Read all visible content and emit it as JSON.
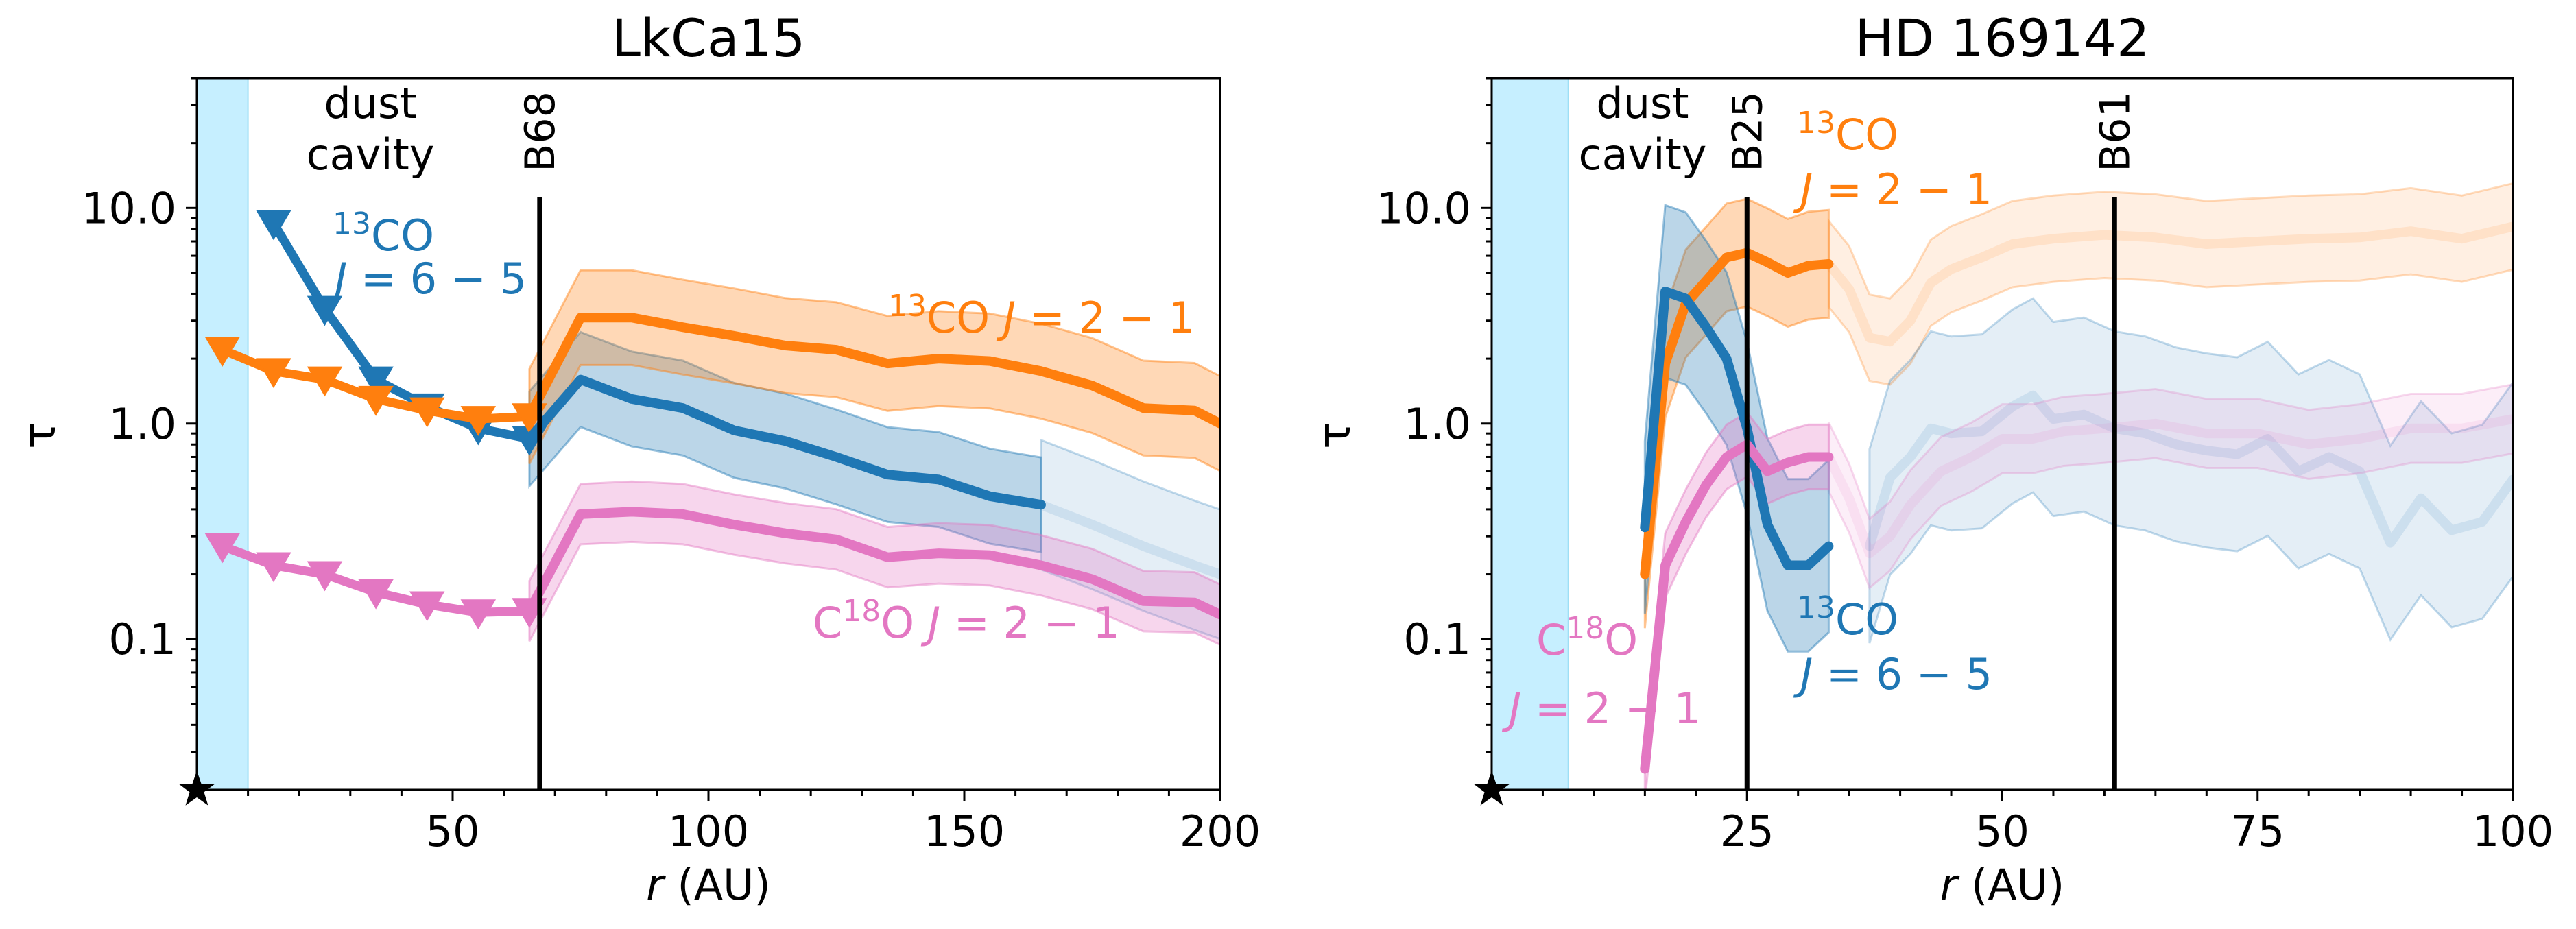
{
  "chart_data": [
    {
      "type": "line",
      "title": "LkCa15",
      "xlabel_italic": "r",
      "xlabel_rest": " (AU)",
      "ylabel": "τ",
      "xlim": [
        0,
        200
      ],
      "ylim": [
        0.02,
        40
      ],
      "yscale": "log",
      "xticks": [
        50,
        100,
        150,
        200
      ],
      "xtick_labels": [
        "50",
        "100",
        "150",
        "200"
      ],
      "yticks": [
        0.1,
        1.0,
        10.0
      ],
      "ytick_labels": [
        "0.1",
        "1.0",
        "10.0"
      ],
      "cavity": {
        "x0": 0,
        "x1": 10,
        "label_line1": "dust",
        "label_line2": "cavity",
        "color": "#c6efff"
      },
      "vlines": [
        {
          "x": 67,
          "label": "B68"
        }
      ],
      "series": [
        {
          "name": "13CO J=6-5",
          "color": "#1f77b4",
          "upper_limits": {
            "x": [
              15,
              25,
              35,
              45,
              55,
              65
            ],
            "y": [
              8.5,
              3.4,
              1.6,
              1.2,
              0.95,
              0.85
            ]
          },
          "main": {
            "x": [
              65,
              75,
              85,
              95,
              105,
              115,
              125,
              135,
              145,
              155,
              165
            ],
            "y": [
              0.85,
              1.6,
              1.3,
              1.18,
              0.93,
              0.83,
              0.7,
              0.58,
              0.55,
              0.46,
              0.42
            ],
            "err": 0.22
          },
          "faded": {
            "x": [
              165,
              175,
              185,
              195,
              200
            ],
            "y": [
              0.42,
              0.34,
              0.27,
              0.22,
              0.2
            ],
            "err": 0.3
          }
        },
        {
          "name": "13CO J=2-1",
          "color": "#ff7f0e",
          "upper_limits": {
            "x": [
              5,
              15,
              25,
              35,
              45,
              55,
              65
            ],
            "y": [
              2.2,
              1.75,
              1.6,
              1.3,
              1.15,
              1.05,
              1.08
            ]
          },
          "main": {
            "x": [
              65,
              75,
              85,
              95,
              105,
              115,
              125,
              135,
              145,
              155,
              165,
              175,
              185,
              195,
              200
            ],
            "y": [
              1.08,
              3.1,
              3.1,
              2.8,
              2.55,
              2.3,
              2.2,
              1.9,
              2.0,
              1.95,
              1.75,
              1.5,
              1.18,
              1.15,
              1.0
            ],
            "err": 0.22
          }
        },
        {
          "name": "C18O J=2-1",
          "color": "#e377c2",
          "upper_limits": {
            "x": [
              5,
              15,
              25,
              35,
              45,
              55,
              65
            ],
            "y": [
              0.27,
              0.22,
              0.2,
              0.165,
              0.145,
              0.133,
              0.135
            ]
          },
          "main": {
            "x": [
              65,
              75,
              85,
              95,
              105,
              115,
              125,
              135,
              145,
              155,
              165,
              175,
              185,
              195,
              200
            ],
            "y": [
              0.135,
              0.38,
              0.39,
              0.38,
              0.34,
              0.31,
              0.29,
              0.24,
              0.25,
              0.245,
              0.22,
              0.19,
              0.15,
              0.148,
              0.13
            ],
            "err": 0.14
          }
        }
      ],
      "annotations": [
        {
          "id": "co13_65",
          "sup": "13",
          "line1": "CO",
          "line2_italic": "J",
          "line2_rest": " = 6 − 5",
          "color": "#1f77b4"
        },
        {
          "id": "co13_21",
          "sup": "13",
          "line1": "CO",
          "line2_italic": "J",
          "line2_rest": " = 2 − 1",
          "color": "#ff7f0e"
        },
        {
          "id": "c18o_21",
          "pre": "C",
          "sup": "18",
          "line1": "O",
          "line2_italic": "J",
          "line2_rest": " = 2 − 1",
          "color": "#e377c2"
        }
      ]
    },
    {
      "type": "line",
      "title": "HD 169142",
      "xlabel_italic": "r",
      "xlabel_rest": " (AU)",
      "ylabel": "τ",
      "xlim": [
        0,
        100
      ],
      "ylim": [
        0.02,
        40
      ],
      "yscale": "log",
      "xticks": [
        25,
        50,
        75,
        100
      ],
      "xtick_labels": [
        "25",
        "50",
        "75",
        "100"
      ],
      "yticks": [
        0.1,
        1.0,
        10.0
      ],
      "ytick_labels": [
        "0.1",
        "1.0",
        "10.0"
      ],
      "cavity": {
        "x0": 0,
        "x1": 7.5,
        "label_line1": "dust",
        "label_line2": "cavity",
        "color": "#c6efff"
      },
      "vlines": [
        {
          "x": 25,
          "label": "B25"
        },
        {
          "x": 61,
          "label": "B61"
        }
      ],
      "series": [
        {
          "name": "13CO J=2-1",
          "color": "#ff7f0e",
          "main": {
            "x": [
              15,
              17,
              19,
              21,
              23,
              25,
              27,
              29,
              31,
              33
            ],
            "y": [
              0.2,
              1.9,
              3.6,
              4.6,
              5.9,
              6.2,
              5.6,
              5.0,
              5.4,
              5.5
            ],
            "err": 0.25
          },
          "faded": {
            "x": [
              33,
              35,
              37,
              39,
              41,
              43,
              45,
              48,
              51,
              55,
              60,
              65,
              70,
              75,
              80,
              85,
              90,
              95,
              100
            ],
            "y": [
              5.5,
              4.2,
              2.5,
              2.4,
              3.0,
              4.5,
              5.2,
              5.9,
              6.8,
              7.2,
              7.5,
              7.3,
              6.8,
              7.0,
              7.2,
              7.3,
              7.8,
              7.2,
              8.2
            ],
            "err": 0.2
          }
        },
        {
          "name": "13CO J=6-5",
          "color": "#1f77b4",
          "main": {
            "x": [
              15,
              17,
              19,
              21,
              23,
              25,
              27,
              29,
              31,
              33
            ],
            "y": [
              0.33,
              4.1,
              3.8,
              2.8,
              2.0,
              0.95,
              0.34,
              0.22,
              0.22,
              0.27
            ],
            "err": 0.4
          },
          "faded": {
            "x": [
              37,
              39,
              41,
              43,
              45,
              48,
              51,
              53,
              55,
              58,
              61,
              64,
              67,
              70,
              73,
              76,
              79,
              82,
              85,
              88,
              91,
              94,
              97,
              100
            ],
            "y": [
              0.27,
              0.56,
              0.7,
              0.95,
              0.9,
              0.92,
              1.2,
              1.35,
              1.05,
              1.1,
              0.95,
              0.9,
              0.8,
              0.75,
              0.72,
              0.85,
              0.6,
              0.7,
              0.6,
              0.28,
              0.45,
              0.32,
              0.35,
              0.55
            ],
            "err": 0.45
          }
        },
        {
          "name": "C18O J=2-1",
          "color": "#e377c2",
          "main": {
            "x": [
              15,
              17,
              19,
              21,
              23,
              25,
              27,
              29,
              31,
              33
            ],
            "y": [
              0.025,
              0.22,
              0.35,
              0.52,
              0.7,
              0.8,
              0.6,
              0.66,
              0.7,
              0.7
            ],
            "err": 0.15
          },
          "faded": {
            "x": [
              33,
              35,
              37,
              39,
              41,
              44,
              47,
              50,
              53,
              56,
              60,
              65,
              70,
              75,
              80,
              85,
              90,
              95,
              100
            ],
            "y": [
              0.7,
              0.45,
              0.25,
              0.3,
              0.42,
              0.6,
              0.7,
              0.85,
              0.85,
              0.92,
              0.95,
              1.0,
              0.9,
              0.9,
              0.8,
              0.85,
              0.95,
              0.95,
              1.05
            ],
            "err": 0.16
          }
        }
      ],
      "annotations": [
        {
          "id": "co13_21",
          "sup": "13",
          "line1": "CO",
          "line2_italic": "J",
          "line2_rest": " = 2 − 1",
          "color": "#ff7f0e"
        },
        {
          "id": "co13_65",
          "sup": "13",
          "line1": "CO",
          "line2_italic": "J",
          "line2_rest": " = 6 − 5",
          "color": "#1f77b4"
        },
        {
          "id": "c18o_21",
          "pre": "C",
          "sup": "18",
          "line1": "O",
          "line2_italic": "J",
          "line2_rest": " = 2 − 1",
          "color": "#e377c2"
        }
      ]
    }
  ]
}
